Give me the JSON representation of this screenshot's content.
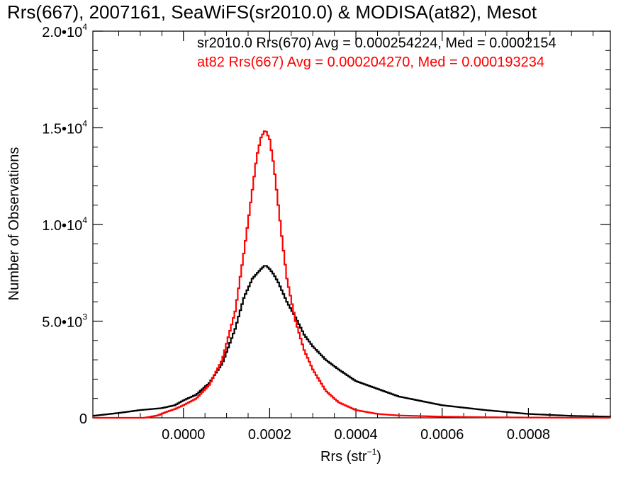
{
  "chart_data": {
    "type": "line",
    "title": "Rrs(667), 2007161, SeaWiFS(sr2010.0) & MODISA(at82), Mesot",
    "xlabel_main": "Rrs (str",
    "xlabel_sup": "−1",
    "xlabel_tail": ")",
    "ylabel": "Number of Observations",
    "xlim": [
      -0.00021,
      0.00099
    ],
    "ylim": [
      0,
      20000
    ],
    "x_ticks": [
      {
        "value": 0.0,
        "label": "0.0000"
      },
      {
        "value": 0.0002,
        "label": "0.0002"
      },
      {
        "value": 0.0004,
        "label": "0.0004"
      },
      {
        "value": 0.0006,
        "label": "0.0006"
      },
      {
        "value": 0.0008,
        "label": "0.0008"
      }
    ],
    "y_ticks": [
      {
        "value": 0,
        "mant": "0",
        "exp": ""
      },
      {
        "value": 5000,
        "mant": "5.0•10",
        "exp": "3"
      },
      {
        "value": 10000,
        "mant": "1.0•10",
        "exp": "4"
      },
      {
        "value": 15000,
        "mant": "1.5•10",
        "exp": "4"
      },
      {
        "value": 20000,
        "mant": "2.0•10",
        "exp": "4"
      }
    ],
    "series": [
      {
        "name": "sr2010.0 Rrs(670) Avg = 0.000254224, Med = 0.0002154",
        "color": "#000000",
        "x": [
          -0.00021,
          -0.00015,
          -0.0001,
          -5e-05,
          -2e-05,
          0.0,
          3e-05,
          6e-05,
          9e-05,
          0.00012,
          0.00014,
          0.00016,
          0.00018,
          0.00019,
          0.0002,
          0.00021,
          0.00022,
          0.00024,
          0.00026,
          0.00028,
          0.0003,
          0.00033,
          0.00036,
          0.0004,
          0.00045,
          0.0005,
          0.0006,
          0.0007,
          0.0008,
          0.0009,
          0.00099
        ],
        "y": [
          100,
          250,
          400,
          500,
          650,
          900,
          1200,
          1800,
          2800,
          4600,
          6200,
          7200,
          7700,
          7900,
          7700,
          7400,
          7000,
          6000,
          5200,
          4300,
          3700,
          3000,
          2500,
          1900,
          1500,
          1100,
          650,
          400,
          200,
          100,
          60
        ]
      },
      {
        "name": "at82 Rrs(667) Avg = 0.000204270, Med = 0.000193234",
        "color": "#ff0000",
        "x": [
          -0.00021,
          -9e-05,
          -6e-05,
          -4e-05,
          -2e-05,
          0.0,
          3e-05,
          6e-05,
          9e-05,
          0.00012,
          0.00014,
          0.00016,
          0.00017,
          0.00018,
          0.00019,
          0.0002,
          0.00021,
          0.00022,
          0.00023,
          0.00024,
          0.00026,
          0.00028,
          0.0003,
          0.00033,
          0.00036,
          0.0004,
          0.00045,
          0.0005,
          0.0006,
          0.0007,
          0.0008,
          0.0009,
          0.00099
        ],
        "y": [
          0,
          0,
          120,
          300,
          450,
          650,
          1000,
          1700,
          3000,
          5500,
          8500,
          11800,
          13500,
          14500,
          14900,
          14400,
          13000,
          11000,
          9000,
          7200,
          5000,
          3500,
          2500,
          1400,
          800,
          400,
          200,
          120,
          60,
          30,
          15,
          5,
          0
        ]
      }
    ]
  }
}
